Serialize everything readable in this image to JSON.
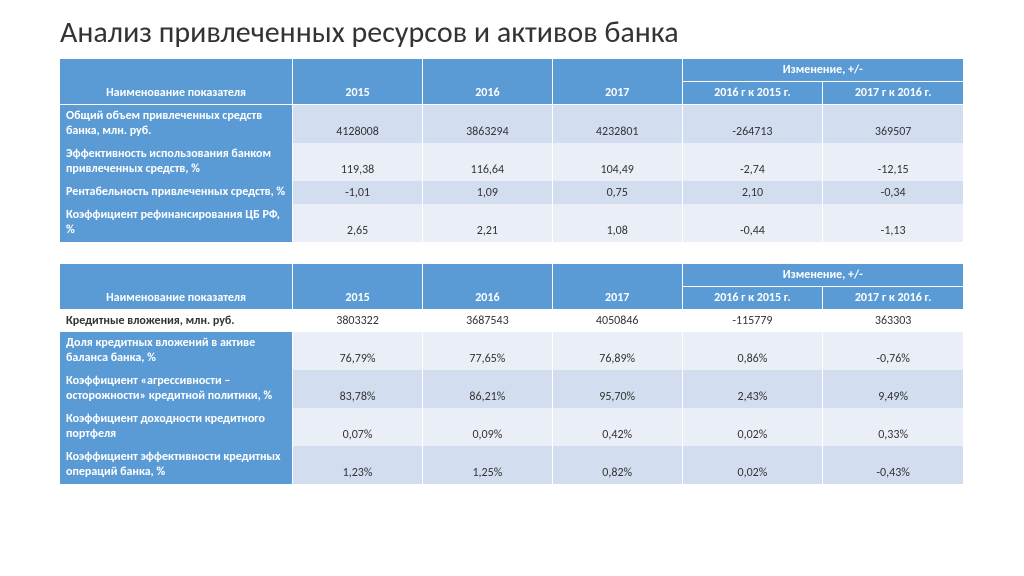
{
  "title": "Анализ привлеченных ресурсов и активов банка",
  "header_bg": "#5b9bd5",
  "header_fg": "#ffffff",
  "band_a": "#d2deef",
  "band_b": "#eaeff7",
  "columns": {
    "name": "Наименование показателя",
    "y2015": "2015",
    "y2016": "2016",
    "y2017": "2017",
    "change_group": "Изменение, +/-",
    "chg1": "2016 г к 2015 г.",
    "chg2": "2017 г к 2016 г."
  },
  "table1": {
    "rows": [
      {
        "label": "Общий объем привлеченных средств банка, млн. руб.",
        "v2015": "4128008",
        "v2016": "3863294",
        "v2017": "4232801",
        "c1": "-264713",
        "c2": "369507"
      },
      {
        "label": "Эффективность использования банком привлеченных средств, %",
        "v2015": "119,38",
        "v2016": "116,64",
        "v2017": "104,49",
        "c1": "-2,74",
        "c2": "-12,15"
      },
      {
        "label": "Рентабельность привлеченных средств, %",
        "v2015": "-1,01",
        "v2016": "1,09",
        "v2017": "0,75",
        "c1": "2,10",
        "c2": "-0,34"
      },
      {
        "label": "Коэффициент рефинансирования ЦБ РФ, %",
        "v2015": "2,65",
        "v2016": "2,21",
        "v2017": "1,08",
        "c1": "-0,44",
        "c2": "-1,13"
      }
    ]
  },
  "table2": {
    "rows": [
      {
        "label": "Кредитные вложения, млн. руб.",
        "v2015": "3803322",
        "v2016": "3687543",
        "v2017": "4050846",
        "c1": "-115779",
        "c2": "363303"
      },
      {
        "label": "Доля кредитных вложений в активе баланса банка, %",
        "v2015": "76,79%",
        "v2016": "77,65%",
        "v2017": "76,89%",
        "c1": "0,86%",
        "c2": "-0,76%"
      },
      {
        "label": "Коэффициент «агрессивности – осторожности» кредитной политики, %",
        "v2015": "83,78%",
        "v2016": "86,21%",
        "v2017": "95,70%",
        "c1": "2,43%",
        "c2": "9,49%"
      },
      {
        "label": "Коэффициент доходности кредитного портфеля",
        "v2015": "0,07%",
        "v2016": "0,09%",
        "v2017": "0,42%",
        "c1": "0,02%",
        "c2": "0,33%"
      },
      {
        "label": "Коэффициент эффективности кредитных операций банка, %",
        "v2015": "1,23%",
        "v2016": "1,25%",
        "v2017": "0,82%",
        "c1": "0,02%",
        "c2": "-0,43%"
      }
    ]
  }
}
